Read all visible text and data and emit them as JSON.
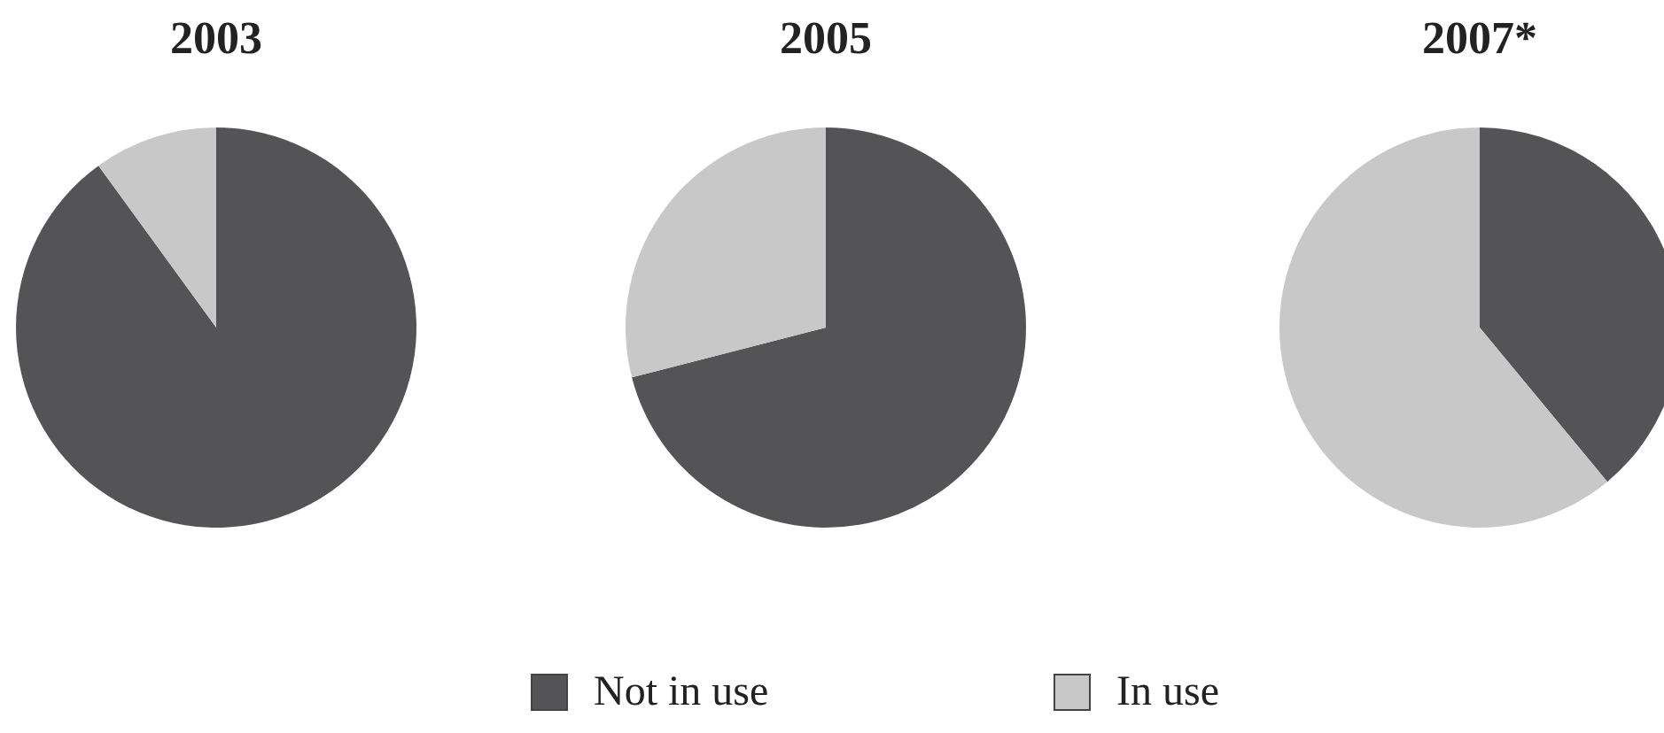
{
  "chart_data": [
    {
      "type": "pie",
      "title": "2003",
      "categories": [
        "Not in use",
        "In use"
      ],
      "values": [
        90,
        10
      ],
      "colors": [
        "#545456",
        "#c8c8c8"
      ],
      "legend": "bottom"
    },
    {
      "type": "pie",
      "title": "2005",
      "categories": [
        null,
        null
      ],
      "values": [
        71,
        29
      ],
      "colors": [
        "#545456",
        "#c8c8c8"
      ]
    },
    {
      "type": "pie",
      "title": "2007*",
      "categories": [
        null,
        null
      ],
      "values": [
        39,
        61
      ],
      "colors": [
        "#545456",
        "#c8c8c8"
      ]
    }
  ]
}
